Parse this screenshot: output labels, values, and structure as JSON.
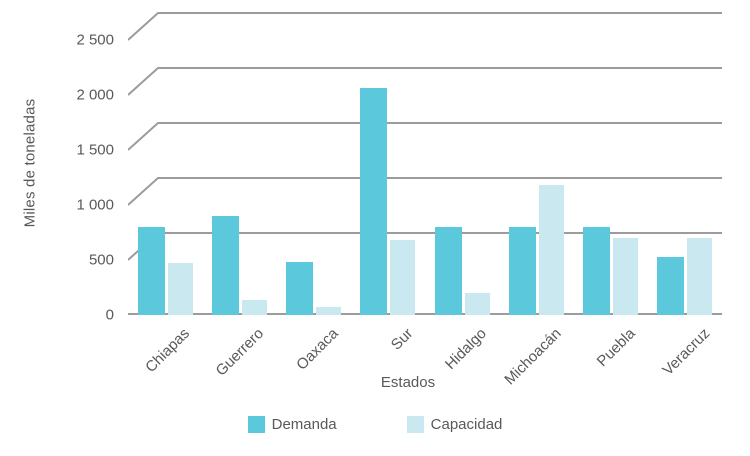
{
  "chart_data": {
    "type": "bar",
    "title": "",
    "categories": [
      "Chiapas",
      "Guerrero",
      "Oaxaca",
      "Sur",
      "Hidalgo",
      "Michoacán",
      "Puebla",
      "Veracruz"
    ],
    "series": [
      {
        "name": "Demanda",
        "color": "#5bc8dc",
        "values": [
          800,
          900,
          480,
          2060,
          800,
          800,
          800,
          530
        ]
      },
      {
        "name": "Capacidad",
        "color": "#c9e8f0",
        "values": [
          470,
          140,
          75,
          680,
          200,
          1180,
          700,
          700
        ]
      }
    ],
    "xlabel": "Estados",
    "ylabel": "Miles de toneladas",
    "ylim": [
      0,
      2500
    ],
    "yticks": [
      {
        "value": 0,
        "label": "0"
      },
      {
        "value": 500,
        "label": "500"
      },
      {
        "value": 1000,
        "label": "1 000"
      },
      {
        "value": 1500,
        "label": "1 500"
      },
      {
        "value": 2000,
        "label": "2 000"
      },
      {
        "value": 2500,
        "label": "2 500"
      }
    ],
    "grid": true,
    "legend_position": "bottom"
  },
  "styles": {
    "text_color": "#58595b",
    "grid_color": "#9c9c9c",
    "background": "#ffffff"
  }
}
